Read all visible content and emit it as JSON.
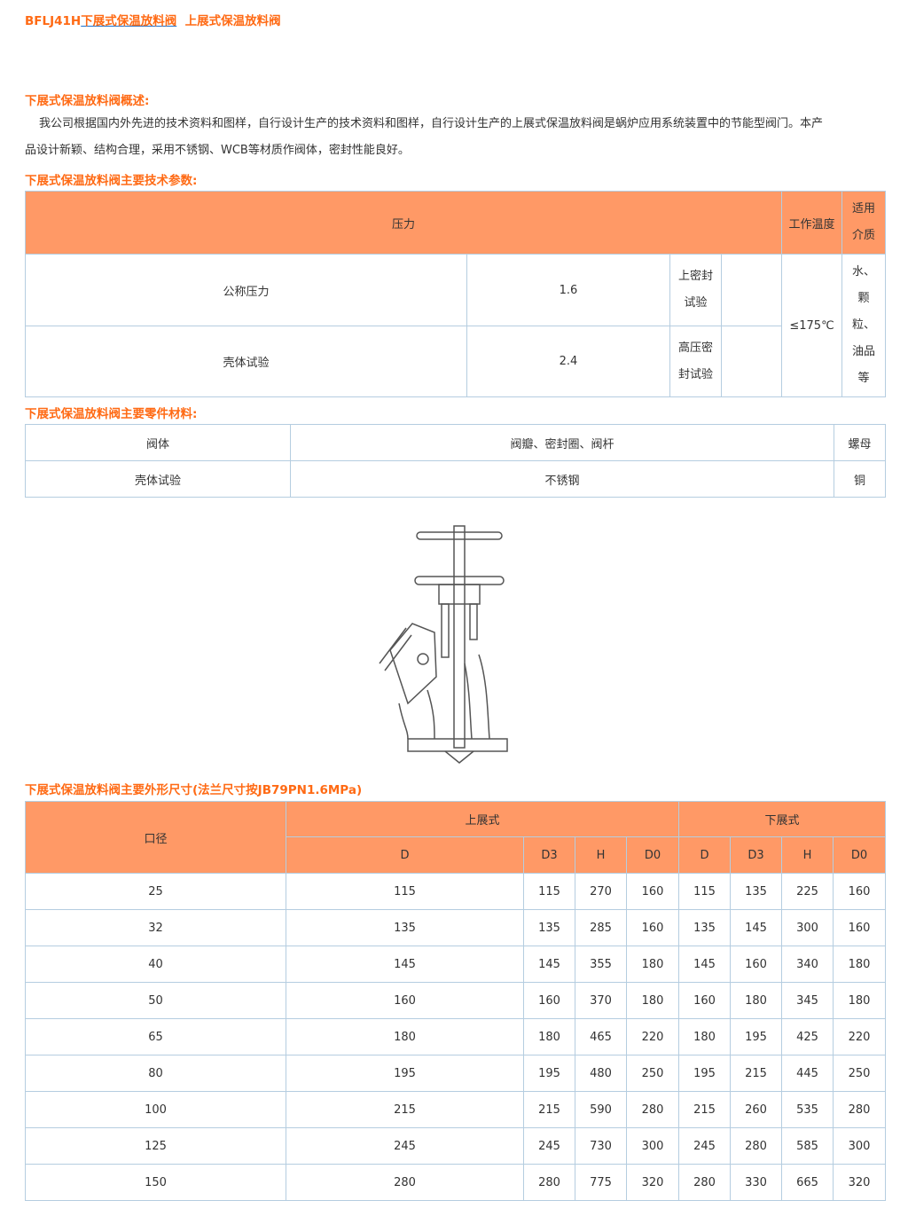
{
  "title": {
    "prefix": "BFLJ41H",
    "link1": "下展式保温放料阀",
    "link2": "上展式保温放料阀"
  },
  "overview": {
    "heading": "下展式保温放料阀概述:",
    "text1": "我公司根据国内外先进的技术资料和图样，自行设计生产的技术资料和图样，自行设计生产的上展式保温放料阀是蜗炉应用系统装置中的节能型阀门。本产",
    "text2": "品设计新颖、结构合理，采用不锈钢、WCB等材质作阀体，密封性能良好。"
  },
  "params": {
    "heading": "下展式保温放料阀主要技术参数:",
    "h_pressure": "压力",
    "h_temp": "工作温度",
    "h_medium1": "适用",
    "h_medium2": "介质",
    "r1_label": "公称压力",
    "r1_value": "1.6",
    "r1_test1": "上密封",
    "r1_test2": "试验",
    "r2_label": "壳体试验",
    "r2_value": "2.4",
    "r2_test1": "高压密",
    "r2_test2": "封试验",
    "temp": "≤175℃",
    "medium": [
      "水、",
      "颗",
      "粒、",
      "油品",
      "等"
    ]
  },
  "materials": {
    "heading": "下展式保温放料阀主要零件材料:",
    "headers": [
      "阀体",
      "阀瓣、密封圈、阀杆",
      "螺母"
    ],
    "row": [
      "壳体试验",
      "不锈钢",
      "铜"
    ]
  },
  "dims": {
    "heading": "下展式保温放料阀主要外形尺寸(法兰尺寸按JB79PN1.6MPa)",
    "h_size": "口径",
    "h_upper": "上展式",
    "h_lower": "下展式",
    "sub": [
      "D",
      "D3",
      "H",
      "D0",
      "D",
      "D3",
      "H",
      "D0"
    ],
    "rows": [
      [
        "25",
        "115",
        "115",
        "270",
        "160",
        "115",
        "135",
        "225",
        "160"
      ],
      [
        "32",
        "135",
        "135",
        "285",
        "160",
        "135",
        "145",
        "300",
        "160"
      ],
      [
        "40",
        "145",
        "145",
        "355",
        "180",
        "145",
        "160",
        "340",
        "180"
      ],
      [
        "50",
        "160",
        "160",
        "370",
        "180",
        "160",
        "180",
        "345",
        "180"
      ],
      [
        "65",
        "180",
        "180",
        "465",
        "220",
        "180",
        "195",
        "425",
        "220"
      ],
      [
        "80",
        "195",
        "195",
        "480",
        "250",
        "195",
        "215",
        "445",
        "250"
      ],
      [
        "100",
        "215",
        "215",
        "590",
        "280",
        "215",
        "260",
        "535",
        "280"
      ],
      [
        "125",
        "245",
        "245",
        "730",
        "300",
        "245",
        "280",
        "585",
        "300"
      ],
      [
        "150",
        "280",
        "280",
        "775",
        "320",
        "280",
        "330",
        "665",
        "320"
      ]
    ]
  },
  "colors": {
    "accent": "#ff6a14",
    "header_bg": "#ff9966",
    "border": "#b5cde0"
  }
}
